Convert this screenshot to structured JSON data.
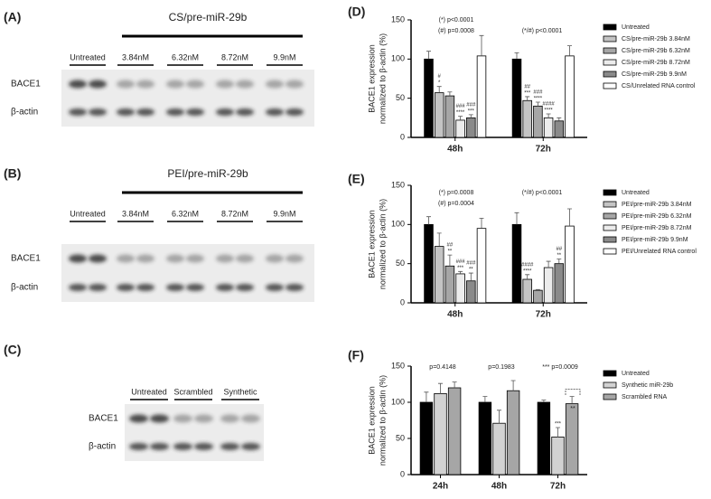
{
  "blots": [
    {
      "label": "(A)",
      "title": "CS/pre-miR-29b",
      "lanes": [
        "Untreated",
        "3.84nM",
        "6.32nM",
        "8.72nM",
        "9.9nM"
      ],
      "rows": [
        "BACE1",
        "β-actin"
      ]
    },
    {
      "label": "(B)",
      "title": "PEI/pre-miR-29b",
      "lanes": [
        "Untreated",
        "3.84nM",
        "6.32nM",
        "8.72nM",
        "9.9nM"
      ],
      "rows": [
        "BACE1",
        "β-actin"
      ]
    },
    {
      "label": "(C)",
      "lanes": [
        "Untreated",
        "Scrambled",
        "Synthetic"
      ],
      "rows": [
        "BACE1",
        "β-actin"
      ]
    }
  ],
  "chart_data": [
    {
      "type": "bar",
      "label": "(D)",
      "ylabel": [
        "BACE1 expression",
        "normalized to β-actin (%)"
      ],
      "categories": [
        "48h",
        "72h"
      ],
      "ylim": [
        0,
        150
      ],
      "yticks": [
        0,
        50,
        100,
        150
      ],
      "annotations": [
        "(*) p<0.0001",
        "(#) p=0.0008",
        "(*/#) p<0.0001"
      ],
      "series": [
        {
          "name": "Untreated",
          "color": "#000000",
          "values": [
            100,
            100
          ],
          "errors": [
            10,
            8
          ],
          "sig": [
            null,
            null
          ]
        },
        {
          "name": "CS/pre-miR-29b 3.84nM",
          "color": "#c4c4c4",
          "values": [
            57,
            47
          ],
          "errors": [
            8,
            5
          ],
          "sig": [
            [
              "#",
              "*"
            ],
            [
              "##",
              "***"
            ]
          ]
        },
        {
          "name": "CS/pre-miR-29b 6.32nM",
          "color": "#a6a6a6",
          "values": [
            53,
            40
          ],
          "errors": [
            5,
            5
          ],
          "sig": [
            null,
            [
              "###",
              "****"
            ]
          ]
        },
        {
          "name": "CS/pre-miR-29b 8.72nM",
          "color": "#ececec",
          "values": [
            22,
            25
          ],
          "errors": [
            5,
            5
          ],
          "sig": [
            [
              "###",
              "****"
            ],
            [
              "####",
              "****"
            ]
          ]
        },
        {
          "name": "CS/pre-miR-29b 9.9nM",
          "color": "#8a8a8a",
          "values": [
            25,
            21
          ],
          "errors": [
            4,
            4
          ],
          "sig": [
            [
              "###",
              "***"
            ],
            null
          ]
        },
        {
          "name": "CS/Unrelated RNA control",
          "color": "#ffffff",
          "values": [
            104,
            104
          ],
          "errors": [
            26,
            13
          ],
          "sig": [
            null,
            null
          ]
        }
      ]
    },
    {
      "type": "bar",
      "label": "(E)",
      "ylabel": [
        "BACE1 expression",
        "normalized to β-actin (%)"
      ],
      "categories": [
        "48h",
        "72h"
      ],
      "ylim": [
        0,
        150
      ],
      "yticks": [
        0,
        50,
        100,
        150
      ],
      "annotations": [
        "(*) p=0.0008",
        "(#) p=0.0004",
        "(*/#) p<0.0001"
      ],
      "series": [
        {
          "name": "Untreated",
          "color": "#000000",
          "values": [
            100,
            100
          ],
          "errors": [
            10,
            15
          ],
          "sig": [
            null,
            null
          ]
        },
        {
          "name": "PEI/pre-miR-29b 3.84nM",
          "color": "#c4c4c4",
          "values": [
            72,
            30
          ],
          "errors": [
            17,
            6
          ],
          "sig": [
            null,
            [
              "####",
              "****"
            ]
          ]
        },
        {
          "name": "PEI/pre-miR-29b 6.32nM",
          "color": "#a6a6a6",
          "values": [
            47,
            16
          ],
          "errors": [
            14,
            1
          ],
          "sig": [
            [
              "##",
              "**"
            ],
            null
          ]
        },
        {
          "name": "PEI/pre-miR-29b 8.72nM",
          "color": "#ececec",
          "values": [
            37,
            45
          ],
          "errors": [
            3,
            8
          ],
          "sig": [
            [
              "###",
              "***"
            ],
            null
          ]
        },
        {
          "name": "PEI/pre-miR-29b 9.9nM",
          "color": "#8a8a8a",
          "values": [
            28,
            50
          ],
          "errors": [
            10,
            6
          ],
          "sig": [
            [
              "###",
              "**"
            ],
            [
              "##",
              "**"
            ]
          ]
        },
        {
          "name": "PEI/Unrelated RNA control",
          "color": "#ffffff",
          "values": [
            95,
            98
          ],
          "errors": [
            13,
            22
          ],
          "sig": [
            null,
            null
          ]
        }
      ]
    },
    {
      "type": "bar",
      "label": "(F)",
      "ylabel": [
        "BACE1 expression",
        "normalized to β-actin (%)"
      ],
      "categories": [
        "24h",
        "48h",
        "72h"
      ],
      "ylim": [
        0,
        150
      ],
      "yticks": [
        0,
        50,
        100,
        150
      ],
      "annotations": [
        "p=0.4148",
        "p=0.1983",
        "*** p=0.0009",
        "**"
      ],
      "series": [
        {
          "name": "Untreated",
          "color": "#000000",
          "values": [
            100,
            100,
            100
          ],
          "errors": [
            14,
            8,
            3
          ],
          "sig": [
            null,
            null,
            null
          ]
        },
        {
          "name": "Synthetic miR-29b",
          "color": "#d2d2d2",
          "values": [
            112,
            71,
            52
          ],
          "errors": [
            14,
            18,
            13
          ],
          "sig": [
            null,
            null,
            [
              "***"
            ]
          ]
        },
        {
          "name": "Scrambled RNA",
          "color": "#a6a6a6",
          "values": [
            120,
            116,
            98
          ],
          "errors": [
            8,
            14,
            10
          ],
          "sig": [
            null,
            null,
            null
          ]
        }
      ]
    }
  ]
}
